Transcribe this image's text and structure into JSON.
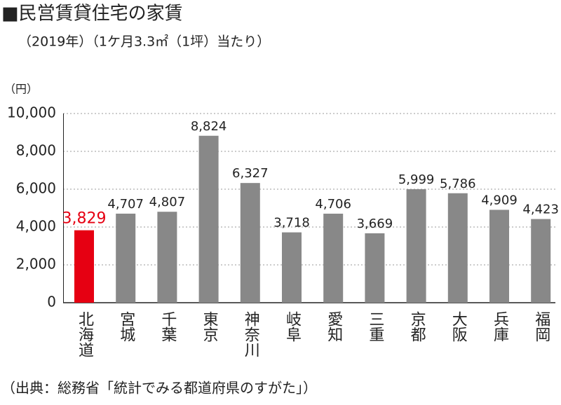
{
  "chart_data": {
    "type": "bar",
    "title": "■民営賃貸住宅の家賃",
    "subtitle": "（2019年）（1ケ月3.3㎡（1坪）当たり）",
    "y_label": "（円）",
    "source": "（出典：総務省「統計でみる都道府県のすがた」）",
    "categories": [
      "北海道",
      "宮城",
      "千葉",
      "東京",
      "神奈川",
      "岐阜",
      "愛知",
      "三重",
      "京都",
      "大阪",
      "兵庫",
      "福岡"
    ],
    "values": [
      3829,
      4707,
      4807,
      8824,
      6327,
      3718,
      4706,
      3669,
      5999,
      5786,
      4909,
      4423
    ],
    "value_labels": [
      "3,829",
      "4,707",
      "4,807",
      "8,824",
      "6,327",
      "3,718",
      "4,706",
      "3,669",
      "5,999",
      "5,786",
      "4,909",
      "4,423"
    ],
    "colors": [
      "#e60012",
      "#888888",
      "#888888",
      "#888888",
      "#888888",
      "#888888",
      "#888888",
      "#888888",
      "#888888",
      "#888888",
      "#888888",
      "#888888"
    ],
    "label_colors": [
      "#e60012",
      "#222222",
      "#222222",
      "#222222",
      "#222222",
      "#222222",
      "#222222",
      "#222222",
      "#222222",
      "#222222",
      "#222222",
      "#222222"
    ],
    "ylim": [
      0,
      10000
    ],
    "yticks": [
      0,
      {
        "value": 2000,
        "label": "2,000"
      },
      {
        "value": 4000,
        "label": "4,000"
      },
      {
        "value": 6000,
        "label": "6,000"
      },
      {
        "value": 8000,
        "label": "8,000"
      },
      {
        "value": 10000,
        "label": "10,000"
      }
    ],
    "grid": true
  }
}
